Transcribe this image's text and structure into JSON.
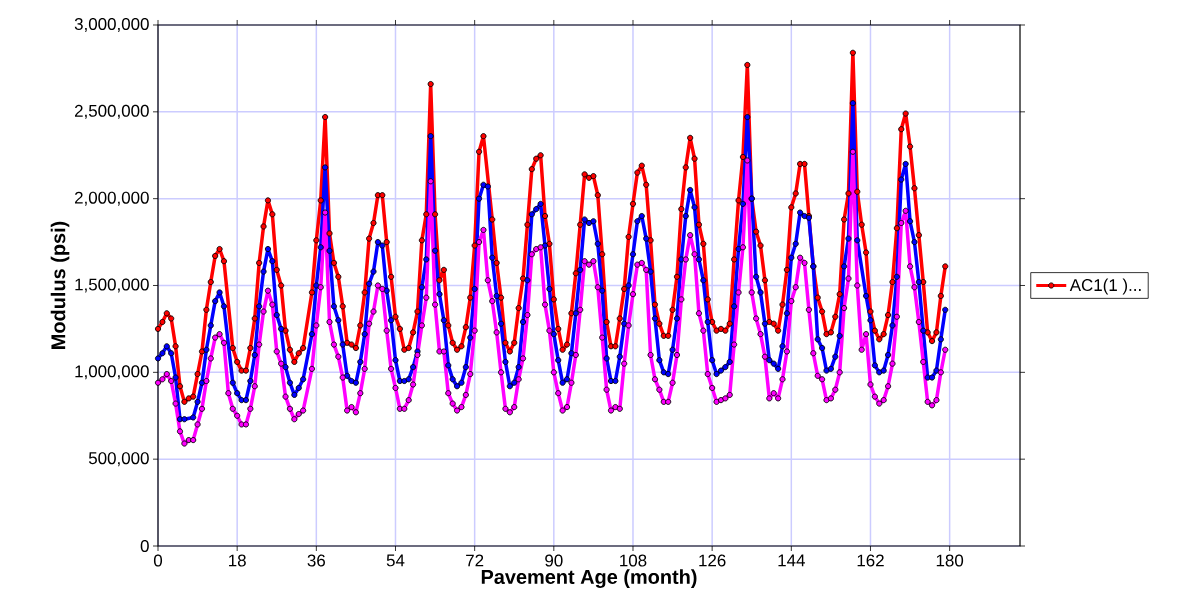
{
  "chart_data": {
    "type": "line",
    "xlabel": "Pavement Age (month)",
    "ylabel": "Modulus (psi)",
    "xlim": [
      0,
      196
    ],
    "xticks": [
      0,
      18,
      36,
      54,
      72,
      90,
      108,
      126,
      144,
      162,
      180
    ],
    "ylim": [
      0,
      3000000
    ],
    "yticks": [
      0,
      {
        "value": 500000,
        "label": "500,000"
      },
      {
        "value": 1000000,
        "label": "1,000,000"
      },
      {
        "value": 1500000,
        "label": "1,500,000"
      },
      {
        "value": 2000000,
        "label": "2,000,000"
      },
      {
        "value": 2500000,
        "label": "2,500,000"
      },
      {
        "value": 3000000,
        "label": "3,000,000"
      }
    ],
    "grid": true,
    "legend": "right",
    "marker": "circle",
    "line_style": "solid",
    "series": [
      {
        "name": "AC1(1 )...",
        "color": "#ff0000",
        "x": [
          0,
          1,
          2,
          3,
          4,
          5,
          6,
          7,
          8,
          9,
          10,
          11,
          12,
          13,
          14,
          15,
          17,
          18,
          19,
          20,
          21,
          22,
          23,
          24,
          25,
          26,
          27,
          28,
          29,
          30,
          31,
          32,
          33,
          35,
          36,
          37,
          38,
          39,
          40,
          41,
          42,
          43,
          44,
          45,
          46,
          47,
          48,
          49,
          50,
          51,
          52,
          53,
          54,
          55,
          56,
          57,
          58,
          59,
          60,
          61,
          62,
          63,
          64,
          65,
          66,
          67,
          68,
          69,
          70,
          71,
          72,
          73,
          74,
          76,
          77,
          78,
          79,
          80,
          81,
          82,
          83,
          84,
          85,
          86,
          87,
          88,
          89,
          90,
          91,
          92,
          93,
          94,
          95,
          96,
          97,
          98,
          99,
          100,
          101,
          102,
          103,
          104,
          105,
          106,
          107,
          108,
          109,
          110,
          111,
          112,
          113,
          114,
          115,
          116,
          117,
          118,
          119,
          120,
          121,
          122,
          123,
          124,
          125,
          126,
          127,
          128,
          129,
          130,
          131,
          132,
          133,
          134,
          135,
          136,
          137,
          138,
          139,
          140,
          141,
          142,
          143,
          144,
          145,
          146,
          147,
          148,
          149,
          150,
          151,
          152,
          153,
          154,
          155,
          156,
          157,
          158,
          159,
          160,
          161,
          162,
          163,
          164,
          165,
          166,
          167,
          168,
          169,
          170,
          171,
          172,
          173,
          174,
          175,
          176,
          177,
          178,
          179
        ],
        "values": [
          1250000,
          1290000,
          1340000,
          1310000,
          1150000,
          920000,
          830000,
          850000,
          860000,
          990000,
          1120000,
          1360000,
          1520000,
          1670000,
          1710000,
          1640000,
          1140000,
          1060000,
          1010000,
          1010000,
          1140000,
          1310000,
          1630000,
          1840000,
          1990000,
          1910000,
          1590000,
          1500000,
          1240000,
          1130000,
          1060000,
          1110000,
          1140000,
          1460000,
          1760000,
          1990000,
          2470000,
          1800000,
          1630000,
          1550000,
          1380000,
          1170000,
          1160000,
          1140000,
          1270000,
          1460000,
          1770000,
          1860000,
          2020000,
          2020000,
          1750000,
          1550000,
          1320000,
          1250000,
          1130000,
          1140000,
          1230000,
          1350000,
          1760000,
          1910000,
          2660000,
          1910000,
          1530000,
          1590000,
          1270000,
          1170000,
          1130000,
          1150000,
          1260000,
          1430000,
          1730000,
          2270000,
          2360000,
          1880000,
          1630000,
          1430000,
          1170000,
          1120000,
          1170000,
          1370000,
          1540000,
          1850000,
          2170000,
          2230000,
          2250000,
          1900000,
          1740000,
          1420000,
          1250000,
          1130000,
          1160000,
          1340000,
          1570000,
          1850000,
          2140000,
          2120000,
          2130000,
          2020000,
          1680000,
          1290000,
          1150000,
          1150000,
          1310000,
          1480000,
          1780000,
          1970000,
          2150000,
          2190000,
          2080000,
          1760000,
          1390000,
          1280000,
          1210000,
          1210000,
          1360000,
          1550000,
          1940000,
          2180000,
          2350000,
          2230000,
          1850000,
          1740000,
          1420000,
          1290000,
          1240000,
          1250000,
          1240000,
          1280000,
          1650000,
          1990000,
          2240000,
          2770000,
          2000000,
          1810000,
          1730000,
          1530000,
          1290000,
          1280000,
          1240000,
          1390000,
          1590000,
          1950000,
          2030000,
          2200000,
          2200000,
          1900000,
          1610000,
          1430000,
          1350000,
          1220000,
          1230000,
          1320000,
          1450000,
          1880000,
          2030000,
          2840000,
          2040000,
          1850000,
          1690000,
          1350000,
          1240000,
          1190000,
          1220000,
          1330000,
          1520000,
          1830000,
          2400000,
          2490000,
          2300000,
          2060000,
          1790000,
          1520000,
          1230000,
          1180000,
          1230000,
          1440000,
          1610000
        ]
      },
      {
        "color": "#0000ff",
        "x": [
          0,
          1,
          2,
          3,
          4,
          5,
          6,
          8,
          9,
          10,
          11,
          12,
          13,
          14,
          15,
          17,
          18,
          19,
          20,
          21,
          22,
          23,
          24,
          25,
          26,
          27,
          28,
          29,
          30,
          31,
          32,
          33,
          35,
          36,
          37,
          38,
          39,
          40,
          41,
          42,
          43,
          44,
          45,
          46,
          47,
          48,
          49,
          50,
          51,
          52,
          53,
          54,
          55,
          56,
          57,
          58,
          59,
          60,
          61,
          62,
          63,
          64,
          65,
          66,
          67,
          68,
          69,
          70,
          71,
          72,
          73,
          74,
          75,
          76,
          77,
          78,
          79,
          80,
          81,
          82,
          83,
          84,
          85,
          86,
          87,
          88,
          89,
          90,
          91,
          92,
          93,
          94,
          95,
          96,
          97,
          98,
          99,
          100,
          101,
          102,
          103,
          104,
          105,
          106,
          107,
          108,
          109,
          110,
          111,
          112,
          113,
          114,
          115,
          116,
          117,
          118,
          119,
          120,
          121,
          122,
          123,
          124,
          125,
          126,
          127,
          128,
          129,
          130,
          131,
          132,
          133,
          134,
          135,
          136,
          137,
          138,
          139,
          140,
          141,
          142,
          143,
          144,
          145,
          146,
          147,
          148,
          149,
          150,
          151,
          152,
          153,
          154,
          155,
          156,
          157,
          158,
          159,
          161,
          162,
          163,
          164,
          165,
          166,
          167,
          168,
          169,
          170,
          171,
          172,
          173,
          174,
          175,
          176,
          177,
          178,
          179
        ],
        "values": [
          1080000,
          1110000,
          1150000,
          1110000,
          970000,
          730000,
          730000,
          740000,
          830000,
          940000,
          1130000,
          1270000,
          1410000,
          1460000,
          1380000,
          940000,
          880000,
          840000,
          840000,
          950000,
          1100000,
          1380000,
          1580000,
          1710000,
          1640000,
          1330000,
          1250000,
          1030000,
          940000,
          870000,
          910000,
          960000,
          1220000,
          1500000,
          1720000,
          2180000,
          1700000,
          1380000,
          1300000,
          1160000,
          980000,
          950000,
          940000,
          1060000,
          1220000,
          1510000,
          1580000,
          1750000,
          1730000,
          1470000,
          1300000,
          1070000,
          950000,
          950000,
          960000,
          1030000,
          1120000,
          1490000,
          1650000,
          2360000,
          1700000,
          1450000,
          1300000,
          1040000,
          960000,
          920000,
          940000,
          1030000,
          1200000,
          1480000,
          2000000,
          2080000,
          2070000,
          1660000,
          1440000,
          1280000,
          1060000,
          920000,
          940000,
          1030000,
          1290000,
          1530000,
          1910000,
          1940000,
          1970000,
          1730000,
          1480000,
          1220000,
          1070000,
          940000,
          960000,
          1110000,
          1340000,
          1590000,
          1880000,
          1860000,
          1870000,
          1740000,
          1470000,
          1080000,
          950000,
          950000,
          1090000,
          1280000,
          1500000,
          1680000,
          1870000,
          1900000,
          1770000,
          1580000,
          1310000,
          1070000,
          1000000,
          990000,
          1130000,
          1310000,
          1650000,
          1900000,
          2050000,
          1950000,
          1650000,
          1530000,
          1290000,
          1070000,
          990000,
          1010000,
          1030000,
          1060000,
          1380000,
          1710000,
          1970000,
          2470000,
          2000000,
          1550000,
          1460000,
          1280000,
          1070000,
          1050000,
          1020000,
          1150000,
          1340000,
          1660000,
          1740000,
          1920000,
          1900000,
          1890000,
          1610000,
          1190000,
          1140000,
          1010000,
          1020000,
          1090000,
          1210000,
          1610000,
          1770000,
          2550000,
          1760000,
          1440000,
          1300000,
          1040000,
          1000000,
          1010000,
          1100000,
          1270000,
          1550000,
          2110000,
          2200000,
          1870000,
          1750000,
          1520000,
          1240000,
          970000,
          970000,
          1010000,
          1190000,
          1360000
        ]
      },
      {
        "color": "#ff00ff",
        "x": [
          0,
          1,
          2,
          3,
          4,
          5,
          6,
          7,
          8,
          9,
          10,
          11,
          12,
          13,
          14,
          15,
          16,
          17,
          18,
          19,
          20,
          21,
          22,
          23,
          24,
          25,
          26,
          27,
          28,
          29,
          30,
          31,
          32,
          33,
          35,
          36,
          37,
          38,
          39,
          40,
          41,
          42,
          43,
          44,
          45,
          46,
          47,
          48,
          49,
          50,
          51,
          52,
          53,
          54,
          55,
          56,
          57,
          58,
          59,
          60,
          61,
          62,
          63,
          64,
          65,
          66,
          67,
          68,
          69,
          70,
          71,
          72,
          73,
          74,
          75,
          76,
          77,
          78,
          79,
          80,
          81,
          82,
          83,
          84,
          85,
          86,
          87,
          88,
          89,
          90,
          91,
          92,
          93,
          94,
          95,
          96,
          97,
          98,
          99,
          100,
          101,
          102,
          103,
          104,
          105,
          106,
          107,
          108,
          109,
          110,
          111,
          112,
          113,
          114,
          115,
          116,
          117,
          118,
          119,
          120,
          121,
          122,
          123,
          124,
          125,
          126,
          127,
          128,
          129,
          130,
          131,
          132,
          133,
          134,
          135,
          136,
          137,
          138,
          139,
          140,
          141,
          142,
          143,
          144,
          145,
          146,
          147,
          148,
          149,
          150,
          151,
          152,
          153,
          154,
          155,
          156,
          157,
          158,
          159,
          160,
          161,
          162,
          163,
          164,
          165,
          166,
          167,
          168,
          169,
          170,
          171,
          172,
          173,
          174,
          175,
          176,
          177,
          178,
          179
        ],
        "values": [
          940000,
          960000,
          990000,
          950000,
          820000,
          660000,
          590000,
          610000,
          610000,
          700000,
          790000,
          950000,
          1080000,
          1200000,
          1220000,
          1170000,
          880000,
          790000,
          750000,
          700000,
          700000,
          790000,
          920000,
          1160000,
          1350000,
          1470000,
          1390000,
          1120000,
          1050000,
          860000,
          790000,
          730000,
          760000,
          780000,
          1020000,
          1270000,
          1490000,
          1920000,
          1290000,
          1160000,
          1090000,
          970000,
          780000,
          800000,
          770000,
          880000,
          1020000,
          1280000,
          1350000,
          1500000,
          1480000,
          1240000,
          1020000,
          910000,
          790000,
          790000,
          840000,
          930000,
          1100000,
          1270000,
          1430000,
          2100000,
          1390000,
          1120000,
          1120000,
          880000,
          820000,
          780000,
          800000,
          870000,
          990000,
          1240000,
          1750000,
          1820000,
          1530000,
          1410000,
          1230000,
          1000000,
          790000,
          770000,
          800000,
          960000,
          1080000,
          1330000,
          1680000,
          1710000,
          1720000,
          1390000,
          1240000,
          1000000,
          880000,
          780000,
          800000,
          940000,
          1100000,
          1360000,
          1640000,
          1620000,
          1640000,
          1490000,
          1200000,
          900000,
          780000,
          800000,
          790000,
          1050000,
          1270000,
          1450000,
          1620000,
          1630000,
          1590000,
          1100000,
          960000,
          900000,
          830000,
          830000,
          940000,
          1100000,
          1420000,
          1650000,
          1790000,
          1680000,
          1340000,
          1240000,
          990000,
          910000,
          830000,
          840000,
          850000,
          870000,
          1160000,
          1460000,
          1720000,
          2220000,
          1460000,
          1310000,
          1220000,
          1090000,
          850000,
          880000,
          850000,
          960000,
          1120000,
          1410000,
          1490000,
          1660000,
          1630000,
          1360000,
          1110000,
          980000,
          960000,
          840000,
          850000,
          900000,
          1000000,
          1370000,
          1540000,
          2270000,
          1500000,
          1130000,
          1220000,
          930000,
          860000,
          820000,
          840000,
          920000,
          1050000,
          1320000,
          1860000,
          1930000,
          1610000,
          1490000,
          1290000,
          1060000,
          830000,
          810000,
          840000,
          1000000,
          1130000
        ]
      }
    ]
  }
}
